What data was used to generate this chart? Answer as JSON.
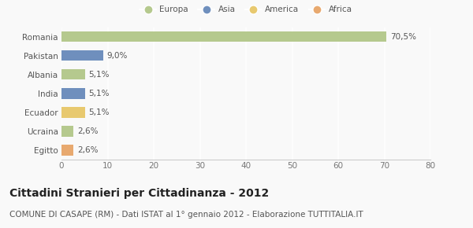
{
  "categories": [
    "Romania",
    "Pakistan",
    "Albania",
    "India",
    "Ecuador",
    "Ucraina",
    "Egitto"
  ],
  "values": [
    70.5,
    9.0,
    5.1,
    5.1,
    5.1,
    2.6,
    2.6
  ],
  "labels": [
    "70,5%",
    "9,0%",
    "5,1%",
    "5,1%",
    "5,1%",
    "2,6%",
    "2,6%"
  ],
  "bar_colors": [
    "#b5c98e",
    "#6f8fbd",
    "#b5c98e",
    "#6f8fbd",
    "#e8c96f",
    "#b5c98e",
    "#e8a96f"
  ],
  "legend_items": [
    {
      "label": "Europa",
      "color": "#b5c98e"
    },
    {
      "label": "Asia",
      "color": "#6f8fbd"
    },
    {
      "label": "America",
      "color": "#e8c96f"
    },
    {
      "label": "Africa",
      "color": "#e8a96f"
    }
  ],
  "xlim": [
    0,
    80
  ],
  "xticks": [
    0,
    10,
    20,
    30,
    40,
    50,
    60,
    70,
    80
  ],
  "title": "Cittadini Stranieri per Cittadinanza - 2012",
  "subtitle": "COMUNE DI CASAPE (RM) - Dati ISTAT al 1° gennaio 2012 - Elaborazione TUTTITALIA.IT",
  "background_color": "#f9f9f9",
  "grid_color": "#ffffff",
  "title_fontsize": 10,
  "subtitle_fontsize": 7.5,
  "label_fontsize": 7.5,
  "tick_fontsize": 7.5,
  "bar_height": 0.55
}
